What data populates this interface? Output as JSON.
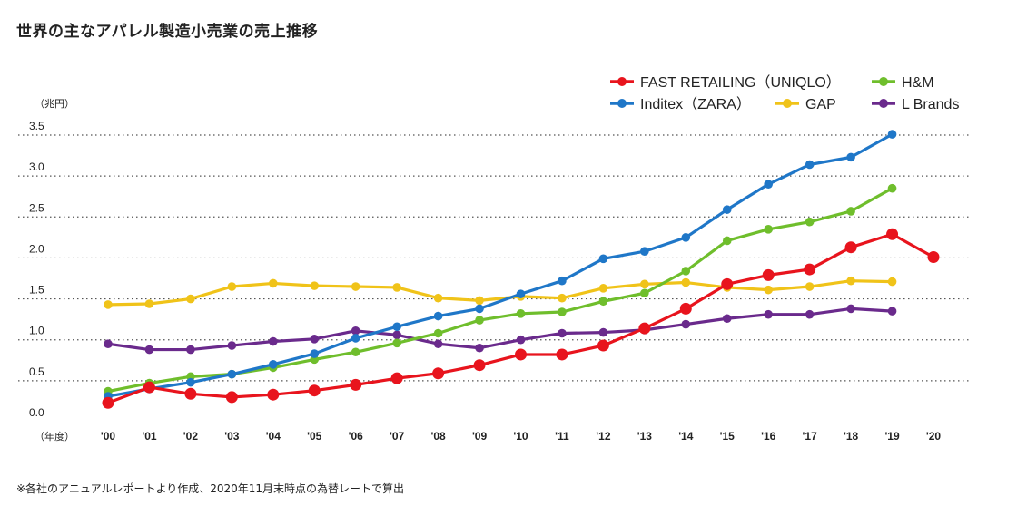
{
  "title": "世界の主なアパレル製造小売業の売上推移",
  "footnote": "※各社のアニュアルレポートより作成、2020年11月末時点の為替レートで算出",
  "chart_data": {
    "type": "line",
    "title": "世界の主なアパレル製造小売業の売上推移",
    "ylabel": "（兆円）",
    "xlabel": "（年度）",
    "ylim": [
      0,
      3.5
    ],
    "yticks": [
      "0.0",
      "0.5",
      "1.0",
      "1.5",
      "2.0",
      "2.5",
      "3.0",
      "3.5"
    ],
    "categories": [
      "'00",
      "'01",
      "'02",
      "'03",
      "'04",
      "'05",
      "'06",
      "'07",
      "'08",
      "'09",
      "'10",
      "'11",
      "'12",
      "'13",
      "'14",
      "'15",
      "'16",
      "'17",
      "'18",
      "'19",
      "'20"
    ],
    "grid": "dotted-horizontal",
    "legend_position": "top-right",
    "series": [
      {
        "name": "FAST RETAILING（UNIQLO）",
        "color": "#e8141d",
        "values": [
          0.23,
          0.42,
          0.34,
          0.3,
          0.33,
          0.38,
          0.45,
          0.53,
          0.59,
          0.69,
          0.82,
          0.82,
          0.93,
          1.14,
          1.38,
          1.68,
          1.79,
          1.86,
          2.13,
          2.29,
          2.01
        ]
      },
      {
        "name": "H&M",
        "color": "#6fbe2c",
        "values": [
          0.37,
          0.47,
          0.55,
          0.58,
          0.66,
          0.76,
          0.85,
          0.96,
          1.08,
          1.24,
          1.32,
          1.34,
          1.47,
          1.57,
          1.84,
          2.21,
          2.35,
          2.44,
          2.57,
          2.85,
          null
        ]
      },
      {
        "name": "Inditex（ZARA）",
        "color": "#1f77c8",
        "values": [
          0.31,
          0.4,
          0.48,
          0.58,
          0.7,
          0.83,
          1.02,
          1.16,
          1.29,
          1.38,
          1.56,
          1.72,
          1.99,
          2.08,
          2.25,
          2.59,
          2.9,
          3.14,
          3.23,
          3.51,
          null
        ]
      },
      {
        "name": "GAP",
        "color": "#f0c319",
        "values": [
          1.43,
          1.44,
          1.5,
          1.65,
          1.69,
          1.66,
          1.65,
          1.64,
          1.51,
          1.48,
          1.53,
          1.51,
          1.63,
          1.68,
          1.7,
          1.64,
          1.61,
          1.65,
          1.72,
          1.71,
          null
        ]
      },
      {
        "name": "L Brands",
        "color": "#6a2a8c",
        "values": [
          0.95,
          0.88,
          0.88,
          0.93,
          0.98,
          1.01,
          1.11,
          1.06,
          0.95,
          0.9,
          1.0,
          1.08,
          1.09,
          1.12,
          1.19,
          1.26,
          1.31,
          1.31,
          1.38,
          1.35,
          null
        ]
      }
    ]
  }
}
